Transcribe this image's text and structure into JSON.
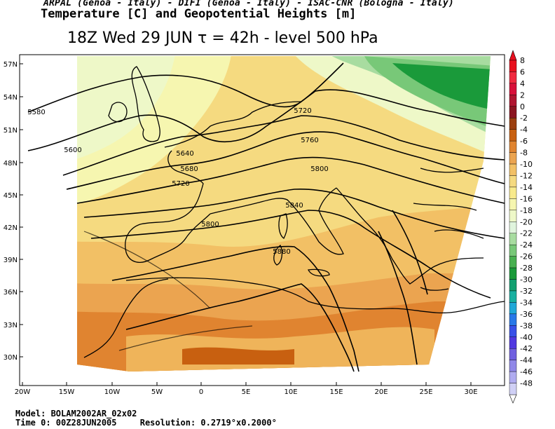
{
  "header": {
    "credits": "ARPAL (Genoa - Italy)  -  DIFI (Genoa - Italy)  -  ISAC-CNR (Bologna - Italy)",
    "title": "Temperature [C] and Geopotential Heights [m]",
    "subtitle": "18Z Wed 29 JUN  τ = 42h  -  level 500 hPa"
  },
  "lat_labels": [
    "57N",
    "54N",
    "51N",
    "48N",
    "45N",
    "42N",
    "39N",
    "36N",
    "33N",
    "30N"
  ],
  "lon_labels": [
    "20W",
    "15W",
    "10W",
    "5W",
    "0",
    "5E",
    "10E",
    "15E",
    "20E",
    "25E",
    "30E"
  ],
  "contour_labels": [
    "5580",
    "5600",
    "5640",
    "5680",
    "5720",
    "5720",
    "5760",
    "5800",
    "5800",
    "5840",
    "5880"
  ],
  "legend": {
    "values": [
      "8",
      "6",
      "4",
      "2",
      "0",
      "-2",
      "-4",
      "-6",
      "-8",
      "-10",
      "-12",
      "-14",
      "-16",
      "-18",
      "-20",
      "-22",
      "-24",
      "-26",
      "-28",
      "-30",
      "-32",
      "-34",
      "-36",
      "-38",
      "-40",
      "-42",
      "-44",
      "-46",
      "-48"
    ],
    "colors": [
      "#e8101e",
      "#f02a40",
      "#d8103a",
      "#b01530",
      "#8b1520",
      "#9c4010",
      "#c86010",
      "#e08430",
      "#eba450",
      "#f2c065",
      "#f5da80",
      "#f8ea8c",
      "#f6f6b0",
      "#eef8c8",
      "#e0f4dd",
      "#a8dca0",
      "#78c878",
      "#48b050",
      "#1a9a3a",
      "#12a070",
      "#18b0a0",
      "#20a8d8",
      "#2878e8",
      "#3850e8",
      "#5038e0",
      "#7060e0",
      "#9088e8",
      "#b0acf0",
      "#d0d0f5"
    ]
  },
  "footer": {
    "model": "Model: BOLAM2002AR_02x02",
    "time": "Time 0: 00Z28JUN2005",
    "resolution": "Resolution: 0.2719°x0.2000°"
  }
}
